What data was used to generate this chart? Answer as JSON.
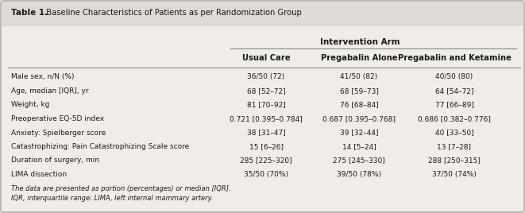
{
  "title_bold": "Table 1.",
  "title_regular": "  Baseline Characteristics of Patients as per Randomization Group",
  "intervention_arm_label": "Intervention Arm",
  "col_headers": [
    "Usual Care",
    "Pregabalin Alone",
    "Pregabalin and Ketamine"
  ],
  "row_labels": [
    "Male sex, n/N (%)",
    "Age, median [IQR], yr",
    "Weight, kg",
    "Preoperative EQ-5D index",
    "Anxiety: Spielberger score",
    "Catastrophizing: Pain Catastrophizing Scale score",
    "Duration of surgery, min",
    "LIMA dissection"
  ],
  "col1": [
    "36/50 (72)",
    "68 [52–72]",
    "81 [70–92]",
    "0.721 [0.395–0.784]",
    "38 [31–47]",
    "15 [6–26]",
    "285 [225–320]",
    "35/50 (70%)"
  ],
  "col2": [
    "41/50 (82)",
    "68 [59–73]",
    "76 [68–84]",
    "0.687 [0.395–0.768]",
    "39 [32–44]",
    "14 [5–24]",
    "275 [245–330]",
    "39/50 (78%)"
  ],
  "col3": [
    "40/50 (80)",
    "64 [54–72]",
    "77 [66–89]",
    "0.686 [0.382–0.776]",
    "40 [33–50]",
    "13 [7–28]",
    "288 [250–315]",
    "37/50 (74%)"
  ],
  "footnote1": "The data are presented as portion (percentages) or median [IQR].",
  "footnote2": "IQR, interquartile range; LIMA, left internal mammary artery.",
  "bg_color": "#e8e3dc",
  "table_bg": "#f0ede8",
  "line_color": "#888880",
  "header_color": "#1a1a1a",
  "text_color": "#1a1a1a",
  "title_area_bg": "#dedad4"
}
